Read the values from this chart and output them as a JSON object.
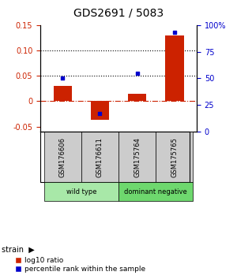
{
  "title": "GDS2691 / 5083",
  "samples": [
    "GSM176606",
    "GSM176611",
    "GSM175764",
    "GSM175765"
  ],
  "log10_ratio": [
    0.03,
    -0.036,
    0.015,
    0.13
  ],
  "percentile_rank": [
    50,
    17,
    55,
    93
  ],
  "bar_color": "#cc2200",
  "dot_color": "#0000cc",
  "left_ylim": [
    -0.06,
    0.15
  ],
  "right_ylim": [
    0,
    100
  ],
  "left_yticks": [
    -0.05,
    0,
    0.05,
    0.1,
    0.15
  ],
  "right_yticks": [
    0,
    25,
    50,
    75,
    100
  ],
  "hlines": [
    0.05,
    0.1
  ],
  "background_color": "#ffffff",
  "sample_box_color": "#cccccc",
  "group_colors": [
    "#a8e8a8",
    "#6ed86e"
  ],
  "groups": [
    {
      "label": "wild type",
      "start": 0,
      "end": 1
    },
    {
      "label": "dominant negative",
      "start": 2,
      "end": 3
    }
  ]
}
